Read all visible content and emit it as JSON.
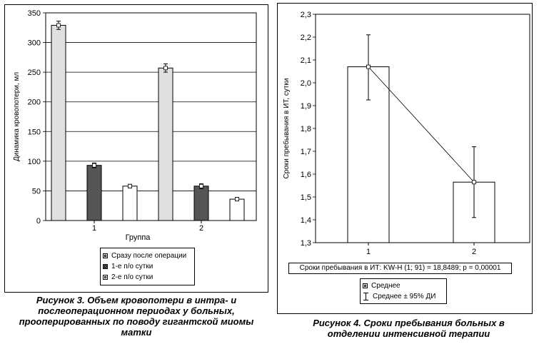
{
  "chart_data": [
    {
      "type": "bar",
      "ylabel": "Динамика кровопотери, мл",
      "xlabel": "Группа",
      "categories": [
        "1",
        "2"
      ],
      "ylim": [
        0,
        350
      ],
      "yticks": [
        "0",
        "50",
        "100",
        "150",
        "200",
        "250",
        "300",
        "350"
      ],
      "grid": true,
      "legend_position": "bottom",
      "series": [
        {
          "name": "Сразу после операции",
          "values": [
            329,
            257
          ],
          "errors": [
            7,
            7
          ],
          "color": "#e0e0e0"
        },
        {
          "name": "1-е п/о сутки",
          "values": [
            93,
            58
          ],
          "errors": [
            4,
            4
          ],
          "color": "#555555"
        },
        {
          "name": "2-е п/о сутки",
          "values": [
            58,
            36
          ],
          "errors": [
            3,
            3
          ],
          "color": "#ffffff"
        }
      ],
      "caption": "Рисунок 3. Объем кровопотери в интра- и послеоперационном периодах у больных, прооперированных по поводу гигантской миомы матки"
    },
    {
      "type": "bar",
      "ylabel": "Сроки пребывания в ИТ, сутки",
      "categories": [
        "1",
        "2"
      ],
      "ylim": [
        1.3,
        2.3
      ],
      "yticks": [
        "1,3",
        "1,4",
        "1,5",
        "1,6",
        "1,7",
        "1,8",
        "1,9",
        "2,0",
        "2,1",
        "2,2",
        "2,3"
      ],
      "series": [
        {
          "name": "Среднее",
          "values": [
            2.07,
            1.565
          ],
          "lower": [
            1.925,
            1.41
          ],
          "upper": [
            2.21,
            1.72
          ]
        }
      ],
      "error_label": "Среднее ± 95% ДИ",
      "stat_text": "Сроки пребывания в ИТ: KW-H (1; 91) = 18,8489; p = 0,00001",
      "legend_position": "bottom",
      "caption": "Рисунок 4. Сроки пребывания больных в отделении интенсивной терапии"
    }
  ]
}
